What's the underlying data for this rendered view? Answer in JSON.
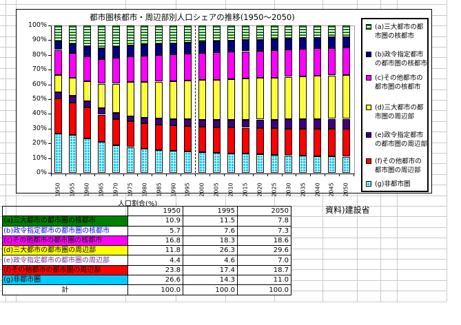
{
  "sheet": {
    "source_note": "資料)建設省"
  },
  "chart": {
    "title": "都市圏核都市・周辺部別人口シェアの推移(1950〜2050)",
    "y_tick_labels": [
      "0%",
      "10%",
      "20%",
      "30%",
      "40%",
      "50%",
      "60%",
      "70%",
      "80%",
      "90%",
      "100%"
    ]
  },
  "chart_data": {
    "type": "bar",
    "stacked": true,
    "title": "都市圏核都市・周辺部別人口シェアの推移(1950〜2050)",
    "xlabel": "",
    "ylabel": "",
    "ylim": [
      0,
      100
    ],
    "y_tick_step": 10,
    "grid": false,
    "legend_position": "right",
    "separator_after_category": "1995",
    "categories": [
      "1950",
      "1955",
      "1960",
      "1965",
      "1970",
      "1975",
      "1980",
      "1985",
      "1990",
      "1995",
      "2000",
      "2005",
      "2010",
      "2015",
      "2020",
      "2025",
      "2030",
      "2035",
      "2040",
      "2045",
      "2050"
    ],
    "series": [
      {
        "name": "(g)非都市圏",
        "color": "#00CCFF",
        "pattern": "cyan-grid",
        "values": [
          26.6,
          25.8,
          23.5,
          21.0,
          18.5,
          17.5,
          16.3,
          15.5,
          14.9,
          14.3,
          14.0,
          13.6,
          13.2,
          12.9,
          12.5,
          12.2,
          11.9,
          11.6,
          11.4,
          11.2,
          11.0
        ]
      },
      {
        "name": "(f)その他都市の都市圏の周辺部",
        "color": "#FF0000",
        "pattern": "red-solid",
        "values": [
          23.8,
          22.0,
          21.0,
          18.5,
          18.0,
          17.5,
          17.2,
          17.2,
          17.3,
          17.4,
          17.3,
          17.4,
          17.6,
          17.7,
          17.9,
          18.0,
          18.2,
          18.3,
          18.5,
          18.6,
          18.7
        ]
      },
      {
        "name": "(e)政令指定都市の都市圏の周辺部",
        "color": "#400080",
        "pattern": "purple-solid",
        "values": [
          4.4,
          4.5,
          4.0,
          4.5,
          4.0,
          3.5,
          4.0,
          4.2,
          4.4,
          4.6,
          4.8,
          5.0,
          5.3,
          5.5,
          5.8,
          6.0,
          6.3,
          6.5,
          6.7,
          6.9,
          7.0
        ]
      },
      {
        "name": "(d)三大都市の都市圏の周辺部",
        "color": "#FFFF00",
        "pattern": "yellow-vstripe",
        "values": [
          11.8,
          12.3,
          13.5,
          16.5,
          20.0,
          23.0,
          24.3,
          25.0,
          25.7,
          26.3,
          26.8,
          27.2,
          27.6,
          27.9,
          28.2,
          28.5,
          28.8,
          29.0,
          29.2,
          29.4,
          29.6
        ]
      },
      {
        "name": "(c)その他都市の都市圏の核都市",
        "color": "#FF00FF",
        "pattern": "magenta-solid",
        "values": [
          16.8,
          16.5,
          17.0,
          16.5,
          17.5,
          17.5,
          17.8,
          17.9,
          18.1,
          18.3,
          18.3,
          18.4,
          18.4,
          18.5,
          18.5,
          18.5,
          18.6,
          18.6,
          18.6,
          18.6,
          18.6
        ]
      },
      {
        "name": "(b)政令指定都市の都市圏の核都市",
        "color": "#000080",
        "pattern": "navy-solid",
        "values": [
          5.7,
          6.5,
          7.0,
          7.5,
          7.5,
          7.5,
          7.4,
          7.5,
          7.5,
          7.6,
          7.5,
          7.5,
          7.5,
          7.5,
          7.5,
          7.5,
          7.4,
          7.4,
          7.4,
          7.3,
          7.3
        ]
      },
      {
        "name": "(a)三大都市の都市圏の核都市",
        "color": "#008000",
        "pattern": "green-hstripe",
        "values": [
          10.9,
          12.4,
          14.0,
          15.5,
          14.5,
          13.5,
          13.0,
          12.7,
          12.1,
          11.5,
          11.3,
          10.9,
          10.4,
          10.0,
          9.6,
          9.3,
          8.8,
          8.6,
          8.2,
          8.0,
          7.8
        ]
      }
    ]
  },
  "legend": {
    "items": [
      {
        "label": "(a)三大都市の都市圏の核都市",
        "pattern": "green-hstripe",
        "color": "#008000"
      },
      {
        "label": "(b)政令指定都市の都市圏の核都市",
        "pattern": "navy-solid",
        "color": "#000080"
      },
      {
        "label": "(c)その他都市の都市圏の核都市",
        "pattern": "magenta-solid",
        "color": "#FF00FF"
      },
      {
        "label": "(d)三大都市の都市圏の周辺部",
        "pattern": "yellow-vstripe",
        "color": "#FFFF00"
      },
      {
        "label": "(e)政令指定都市の都市圏の周辺部",
        "pattern": "purple-solid",
        "color": "#400080"
      },
      {
        "label": "(f)その他都市の都市圏の周辺部",
        "pattern": "red-solid",
        "color": "#FF0000"
      },
      {
        "label": "(g)非都市圏",
        "pattern": "cyan-grid",
        "color": "#00CCFF"
      }
    ]
  },
  "table": {
    "title": "人口割合(%)",
    "columns": [
      "1950",
      "1995",
      "2050"
    ],
    "rows": [
      {
        "label": "(a)三大都市の都市圏の核都市",
        "bg": "#008000",
        "fg": "#000000",
        "values": [
          "10.9",
          "11.5",
          "7.8"
        ]
      },
      {
        "label": "(b)政令指定都市の都市圏の核都市",
        "bg": "#FFFFFF",
        "fg": "#0000FF",
        "values": [
          "5.7",
          "7.6",
          "7.3"
        ]
      },
      {
        "label": "(c)その他都市の都市圏の核都市",
        "bg": "#FF00FF",
        "fg": "#000000",
        "values": [
          "16.8",
          "18.3",
          "18.6"
        ]
      },
      {
        "label": "(d)三大都市の都市圏の周辺部",
        "bg": "#FFFF00",
        "fg": "#000000",
        "values": [
          "11.8",
          "26.3",
          "29.6"
        ]
      },
      {
        "label": "(e)政令指定都市の都市圏の周辺部",
        "bg": "#FFFFFF",
        "fg": "#7030A0",
        "values": [
          "4.4",
          "4.6",
          "7.0"
        ]
      },
      {
        "label": "(f)その他都市の都市圏の周辺部",
        "bg": "#FF0000",
        "fg": "#000000",
        "values": [
          "23.8",
          "17.4",
          "18.7"
        ]
      },
      {
        "label": "(g)非都市圏",
        "bg": "#00CCFF",
        "fg": "#000000",
        "values": [
          "26.6",
          "14.3",
          "11.0"
        ]
      }
    ],
    "total_row": {
      "label": "計",
      "values": [
        "100.0",
        "100.0",
        "100.0"
      ]
    }
  }
}
